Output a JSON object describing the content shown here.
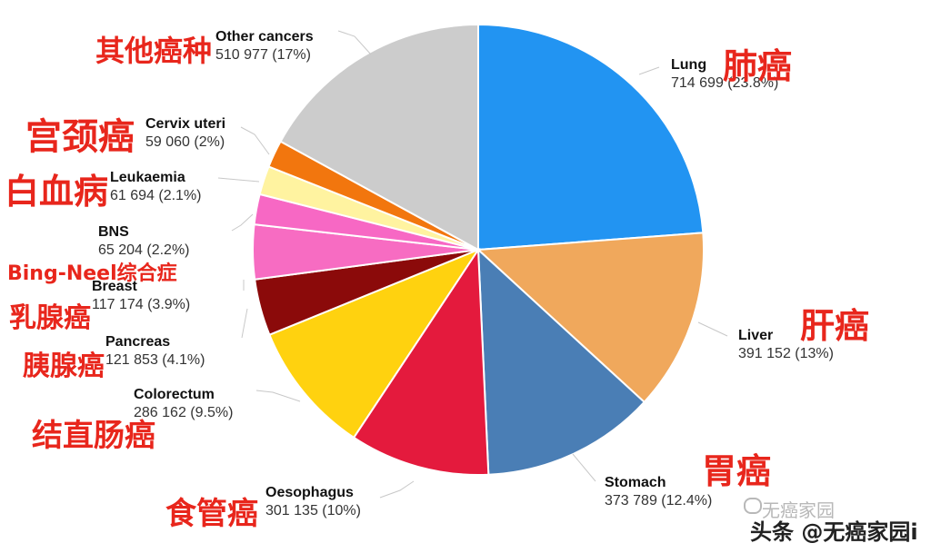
{
  "chart_data": {
    "type": "pie",
    "slices": [
      {
        "name": "Lung",
        "value": 714699,
        "percent_label": "714 699 (23.8%)",
        "cn_label": "肺癌",
        "color": "#2294f2"
      },
      {
        "name": "Liver",
        "value": 391152,
        "percent_label": "391 152 (13%)",
        "cn_label": "肝癌",
        "color": "#f0a85c"
      },
      {
        "name": "Stomach",
        "value": 373789,
        "percent_label": "373 789 (12.4%)",
        "cn_label": "胃癌",
        "color": "#4a7eb5"
      },
      {
        "name": "Oesophagus",
        "value": 301135,
        "percent_label": "301 135 (10%)",
        "cn_label": "食管癌",
        "color": "#e41a3d"
      },
      {
        "name": "Colorectum",
        "value": 286162,
        "percent_label": "286 162 (9.5%)",
        "cn_label": "结直肠癌",
        "color": "#ffd20f"
      },
      {
        "name": "Pancreas",
        "value": 121853,
        "percent_label": "121 853 (4.1%)",
        "cn_label": "胰腺癌",
        "color": "#8b0a0a"
      },
      {
        "name": "Breast",
        "value": 117174,
        "percent_label": "117 174 (3.9%)",
        "cn_label": "乳腺癌",
        "color": "#f76cc2"
      },
      {
        "name": "BNS",
        "value": 65204,
        "percent_label": "65 204 (2.2%)",
        "cn_label": "Bing-Neel综合症",
        "color": "#f768c4"
      },
      {
        "name": "Leukaemia",
        "value": 61694,
        "percent_label": "61 694 (2.1%)",
        "cn_label": "白血病",
        "color": "#fff3a0"
      },
      {
        "name": "Cervix uteri",
        "value": 59060,
        "percent_label": "59 060 (2%)",
        "cn_label": "宫颈癌",
        "color": "#f2760e"
      },
      {
        "name": "Other cancers",
        "value": 510977,
        "percent_label": "510 977 (17%)",
        "cn_label": "其他癌种",
        "color": "#cccccc"
      }
    ]
  },
  "watermark": {
    "line1": "无癌家园",
    "line2": "头条 @无癌家园i"
  }
}
